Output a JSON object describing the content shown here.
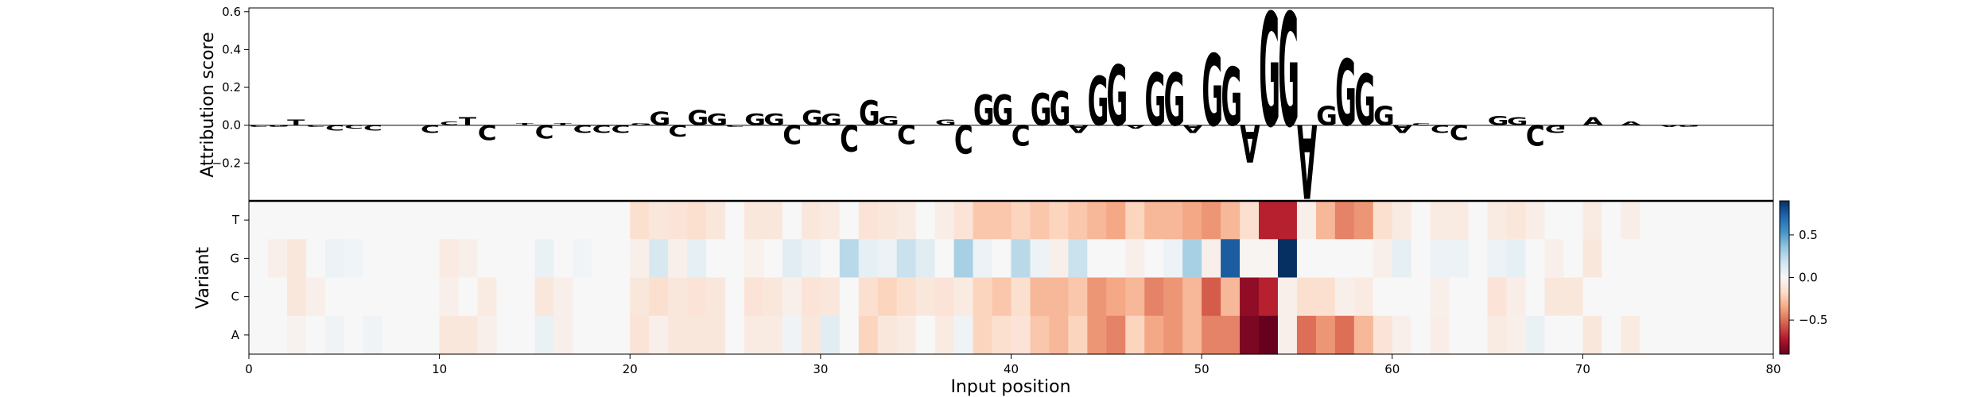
{
  "chart_data": [
    {
      "type": "sequence-logo",
      "ylabel": "Attribution score",
      "yticks": [
        -0.2,
        0.0,
        0.2,
        0.4,
        0.6
      ],
      "ytick_labels": [
        "−0.2",
        "0.0",
        "0.2",
        "0.4",
        "0.6"
      ],
      "xlim": [
        0,
        80
      ],
      "ylim": [
        -0.4,
        0.62
      ],
      "colors": {
        "A": "#008000",
        "C": "#0000c0",
        "G": "#ffa500",
        "T": "#ff0000"
      },
      "letters": [
        {
          "pos": 0,
          "base": "C",
          "value": -0.01
        },
        {
          "pos": 1,
          "base": "G",
          "value": -0.01
        },
        {
          "pos": 2,
          "base": "T",
          "value": 0.03
        },
        {
          "pos": 3,
          "base": "C",
          "value": -0.01
        },
        {
          "pos": 4,
          "base": "C",
          "value": -0.03
        },
        {
          "pos": 5,
          "base": "C",
          "value": -0.02
        },
        {
          "pos": 6,
          "base": "C",
          "value": -0.03
        },
        {
          "pos": 9,
          "base": "C",
          "value": -0.04
        },
        {
          "pos": 10,
          "base": "C",
          "value": 0.02
        },
        {
          "pos": 11,
          "base": "T",
          "value": 0.04
        },
        {
          "pos": 12,
          "base": "C",
          "value": -0.08
        },
        {
          "pos": 14,
          "base": "T",
          "value": 0.01
        },
        {
          "pos": 15,
          "base": "C",
          "value": -0.07
        },
        {
          "pos": 16,
          "base": "T",
          "value": 0.01
        },
        {
          "pos": 17,
          "base": "C",
          "value": -0.04
        },
        {
          "pos": 18,
          "base": "C",
          "value": -0.04
        },
        {
          "pos": 19,
          "base": "C",
          "value": -0.04
        },
        {
          "pos": 20,
          "base": "G",
          "value": 0.01
        },
        {
          "pos": 21,
          "base": "G",
          "value": 0.07
        },
        {
          "pos": 22,
          "base": "C",
          "value": -0.06
        },
        {
          "pos": 23,
          "base": "G",
          "value": 0.08
        },
        {
          "pos": 24,
          "base": "G",
          "value": 0.06
        },
        {
          "pos": 25,
          "base": "C",
          "value": -0.01
        },
        {
          "pos": 26,
          "base": "G",
          "value": 0.06
        },
        {
          "pos": 27,
          "base": "G",
          "value": 0.06
        },
        {
          "pos": 28,
          "base": "C",
          "value": -0.1
        },
        {
          "pos": 29,
          "base": "G",
          "value": 0.08
        },
        {
          "pos": 30,
          "base": "G",
          "value": 0.06
        },
        {
          "pos": 31,
          "base": "C",
          "value": -0.14
        },
        {
          "pos": 32,
          "base": "G",
          "value": 0.13
        },
        {
          "pos": 33,
          "base": "G",
          "value": 0.05
        },
        {
          "pos": 34,
          "base": "C",
          "value": -0.1
        },
        {
          "pos": 36,
          "base": "G",
          "value": 0.03
        },
        {
          "pos": 37,
          "base": "C",
          "value": -0.15
        },
        {
          "pos": 38,
          "base": "G",
          "value": 0.16
        },
        {
          "pos": 39,
          "base": "G",
          "value": 0.16
        },
        {
          "pos": 40,
          "base": "C",
          "value": -0.11
        },
        {
          "pos": 41,
          "base": "G",
          "value": 0.17
        },
        {
          "pos": 42,
          "base": "G",
          "value": 0.18
        },
        {
          "pos": 43,
          "base": "A",
          "value": -0.04
        },
        {
          "pos": 44,
          "base": "G",
          "value": 0.26
        },
        {
          "pos": 45,
          "base": "G",
          "value": 0.32
        },
        {
          "pos": 46,
          "base": "A",
          "value": -0.02
        },
        {
          "pos": 47,
          "base": "G",
          "value": 0.28
        },
        {
          "pos": 48,
          "base": "G",
          "value": 0.28
        },
        {
          "pos": 49,
          "base": "A",
          "value": -0.04
        },
        {
          "pos": 50,
          "base": "G",
          "value": 0.38
        },
        {
          "pos": 51,
          "base": "G",
          "value": 0.31
        },
        {
          "pos": 52,
          "base": "A",
          "value": -0.2
        },
        {
          "pos": 53,
          "base": "G",
          "value": 0.6
        },
        {
          "pos": 54,
          "base": "G",
          "value": 0.6
        },
        {
          "pos": 55,
          "base": "A",
          "value": -0.39
        },
        {
          "pos": 56,
          "base": "G",
          "value": 0.1
        },
        {
          "pos": 57,
          "base": "G",
          "value": 0.35
        },
        {
          "pos": 58,
          "base": "G",
          "value": 0.27
        },
        {
          "pos": 59,
          "base": "G",
          "value": 0.1
        },
        {
          "pos": 60,
          "base": "A",
          "value": -0.04
        },
        {
          "pos": 61,
          "base": "C",
          "value": 0.01
        },
        {
          "pos": 62,
          "base": "C",
          "value": -0.04
        },
        {
          "pos": 63,
          "base": "C",
          "value": -0.08
        },
        {
          "pos": 65,
          "base": "G",
          "value": 0.05
        },
        {
          "pos": 66,
          "base": "G",
          "value": 0.04
        },
        {
          "pos": 67,
          "base": "C",
          "value": -0.11
        },
        {
          "pos": 68,
          "base": "G",
          "value": -0.04
        },
        {
          "pos": 70,
          "base": "A",
          "value": 0.04
        },
        {
          "pos": 72,
          "base": "A",
          "value": 0.02
        },
        {
          "pos": 74,
          "base": "A",
          "value": -0.01
        },
        {
          "pos": 75,
          "base": "G",
          "value": -0.01
        }
      ]
    },
    {
      "type": "heatmap",
      "xlabel": "Input position",
      "ylabel": "Variant",
      "xlim": [
        0,
        80
      ],
      "xticks": [
        0,
        10,
        20,
        30,
        40,
        50,
        60,
        70,
        80
      ],
      "xtick_labels": [
        "0",
        "10",
        "20",
        "30",
        "40",
        "50",
        "60",
        "70",
        "80"
      ],
      "rows": [
        "T",
        "G",
        "C",
        "A"
      ],
      "colormap": "RdBu",
      "vmin": -0.9,
      "vmax": 0.9,
      "colorbar_ticks": [
        0.5,
        0.0,
        -0.5
      ],
      "colorbar_tick_labels": [
        "0.5",
        "0.0",
        "−0.5"
      ],
      "cells": {
        "T": {
          "20": -0.15,
          "21": -0.1,
          "22": -0.12,
          "23": -0.15,
          "24": -0.1,
          "26": -0.1,
          "27": -0.1,
          "29": -0.1,
          "30": -0.08,
          "32": -0.12,
          "33": -0.1,
          "34": -0.08,
          "36": -0.06,
          "37": -0.12,
          "38": -0.25,
          "39": -0.25,
          "40": -0.2,
          "41": -0.25,
          "42": -0.2,
          "43": -0.25,
          "44": -0.3,
          "45": -0.35,
          "46": -0.2,
          "47": -0.3,
          "48": -0.3,
          "49": -0.35,
          "50": -0.4,
          "51": -0.3,
          "52": -0.15,
          "53": -0.7,
          "54": -0.7,
          "55": -0.05,
          "56": -0.3,
          "57": -0.45,
          "58": -0.4,
          "59": -0.15,
          "60": -0.08,
          "62": -0.08,
          "63": -0.08,
          "65": -0.08,
          "66": -0.1,
          "67": -0.06,
          "70": -0.08,
          "72": -0.06
        },
        "G": {
          "1": -0.05,
          "2": -0.1,
          "4": 0.05,
          "5": 0.03,
          "10": -0.08,
          "11": -0.05,
          "15": 0.06,
          "17": 0.03,
          "20": -0.05,
          "21": 0.15,
          "22": -0.05,
          "23": 0.08,
          "26": -0.04,
          "28": 0.1,
          "29": 0.05,
          "31": 0.25,
          "32": 0.08,
          "33": 0.05,
          "34": 0.2,
          "35": 0.1,
          "37": 0.3,
          "38": 0.05,
          "40": 0.25,
          "41": 0.05,
          "42": -0.05,
          "43": 0.2,
          "46": -0.05,
          "48": 0.05,
          "49": 0.3,
          "50": -0.05,
          "51": 0.75,
          "52": -0.02,
          "53": -0.02,
          "54": 0.95,
          "59": -0.05,
          "60": 0.08,
          "62": 0.05,
          "63": 0.05,
          "65": 0.05,
          "66": 0.08,
          "68": -0.05,
          "70": -0.1
        },
        "C": {
          "2": -0.1,
          "3": -0.05,
          "10": -0.05,
          "12": -0.08,
          "15": -0.1,
          "16": -0.05,
          "20": -0.1,
          "21": -0.15,
          "22": -0.1,
          "23": -0.12,
          "24": -0.1,
          "26": -0.12,
          "27": -0.1,
          "28": -0.05,
          "29": -0.12,
          "30": -0.1,
          "32": -0.15,
          "33": -0.2,
          "34": -0.15,
          "35": -0.1,
          "36": -0.12,
          "37": -0.08,
          "38": -0.2,
          "39": -0.25,
          "40": -0.15,
          "41": -0.3,
          "42": -0.3,
          "43": -0.25,
          "44": -0.4,
          "45": -0.35,
          "46": -0.3,
          "47": -0.45,
          "48": -0.4,
          "49": -0.3,
          "50": -0.55,
          "51": -0.3,
          "52": -0.8,
          "53": -0.7,
          "54": -0.05,
          "55": -0.15,
          "56": -0.15,
          "57": -0.05,
          "58": -0.08,
          "62": -0.05,
          "65": -0.12,
          "66": -0.06,
          "68": -0.1,
          "69": -0.1
        },
        "A": {
          "2": -0.03,
          "4": 0.04,
          "6": 0.04,
          "10": -0.1,
          "11": -0.1,
          "12": -0.05,
          "15": 0.06,
          "16": -0.05,
          "20": -0.12,
          "21": -0.05,
          "22": -0.1,
          "23": -0.1,
          "24": -0.1,
          "26": -0.08,
          "27": -0.08,
          "28": 0.04,
          "29": -0.1,
          "30": 0.1,
          "32": -0.2,
          "33": -0.1,
          "34": -0.08,
          "36": -0.08,
          "37": 0.04,
          "38": -0.2,
          "39": -0.15,
          "40": -0.12,
          "41": -0.25,
          "42": -0.3,
          "43": -0.2,
          "44": -0.4,
          "45": -0.45,
          "46": -0.2,
          "47": -0.35,
          "48": -0.4,
          "49": -0.3,
          "50": -0.45,
          "51": -0.45,
          "52": -0.85,
          "53": -0.95,
          "54": -0.05,
          "55": -0.5,
          "56": -0.4,
          "57": -0.5,
          "58": -0.3,
          "59": -0.12,
          "60": -0.05,
          "62": -0.06,
          "65": -0.08,
          "66": -0.05,
          "67": 0.06,
          "70": -0.1,
          "72": -0.08
        }
      }
    }
  ]
}
